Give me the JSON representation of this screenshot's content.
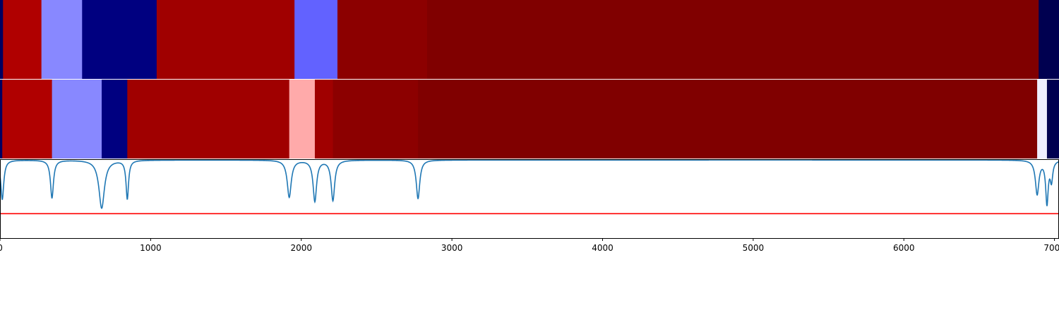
{
  "chart_data": [
    {
      "type": "heatmap",
      "panel": "track-1",
      "xlim": [
        0,
        7030
      ],
      "segments": [
        {
          "start": 0,
          "end": 20,
          "color": "#000060"
        },
        {
          "start": 20,
          "end": 275,
          "color": "#b00000"
        },
        {
          "start": 275,
          "end": 545,
          "color": "#8888ff"
        },
        {
          "start": 545,
          "end": 1040,
          "color": "#000080"
        },
        {
          "start": 1040,
          "end": 1955,
          "color": "#a00000"
        },
        {
          "start": 1955,
          "end": 2240,
          "color": "#6262ff"
        },
        {
          "start": 2240,
          "end": 2835,
          "color": "#8c0000"
        },
        {
          "start": 2835,
          "end": 6895,
          "color": "#800000"
        },
        {
          "start": 6895,
          "end": 7030,
          "color": "#000050"
        }
      ]
    },
    {
      "type": "heatmap",
      "panel": "track-2",
      "xlim": [
        0,
        7030
      ],
      "segments": [
        {
          "start": 0,
          "end": 15,
          "color": "#000060"
        },
        {
          "start": 15,
          "end": 345,
          "color": "#b00000"
        },
        {
          "start": 345,
          "end": 675,
          "color": "#8888ff"
        },
        {
          "start": 675,
          "end": 845,
          "color": "#000080"
        },
        {
          "start": 845,
          "end": 1920,
          "color": "#a00000"
        },
        {
          "start": 1920,
          "end": 2090,
          "color": "#ffaaaa"
        },
        {
          "start": 2090,
          "end": 2210,
          "color": "#a00000"
        },
        {
          "start": 2210,
          "end": 2775,
          "color": "#8c0000"
        },
        {
          "start": 2775,
          "end": 6885,
          "color": "#800000"
        },
        {
          "start": 6885,
          "end": 6950,
          "color": "#eeeeff"
        },
        {
          "start": 6950,
          "end": 7030,
          "color": "#000050"
        }
      ]
    },
    {
      "type": "line",
      "panel": "signal",
      "xlim": [
        0,
        7030
      ],
      "ylim": [
        0,
        1
      ],
      "xticks": [
        0,
        1000,
        2000,
        3000,
        4000,
        5000,
        6000,
        7000
      ],
      "baseline": 0.99,
      "dips": [
        {
          "x": 15,
          "depth": 0.5,
          "width": 12
        },
        {
          "x": 345,
          "depth": 0.48,
          "width": 12
        },
        {
          "x": 675,
          "depth": 0.61,
          "width": 22
        },
        {
          "x": 845,
          "depth": 0.49,
          "width": 10
        },
        {
          "x": 1920,
          "depth": 0.47,
          "width": 16
        },
        {
          "x": 2090,
          "depth": 0.52,
          "width": 14
        },
        {
          "x": 2210,
          "depth": 0.51,
          "width": 14
        },
        {
          "x": 2775,
          "depth": 0.49,
          "width": 14
        },
        {
          "x": 6885,
          "depth": 0.43,
          "width": 14
        },
        {
          "x": 6950,
          "depth": 0.54,
          "width": 10
        },
        {
          "x": 6980,
          "depth": 0.25,
          "width": 10
        }
      ],
      "threshold": {
        "y": 0.31,
        "color": "#ff0000"
      },
      "line_color": "#1f77b4"
    }
  ]
}
